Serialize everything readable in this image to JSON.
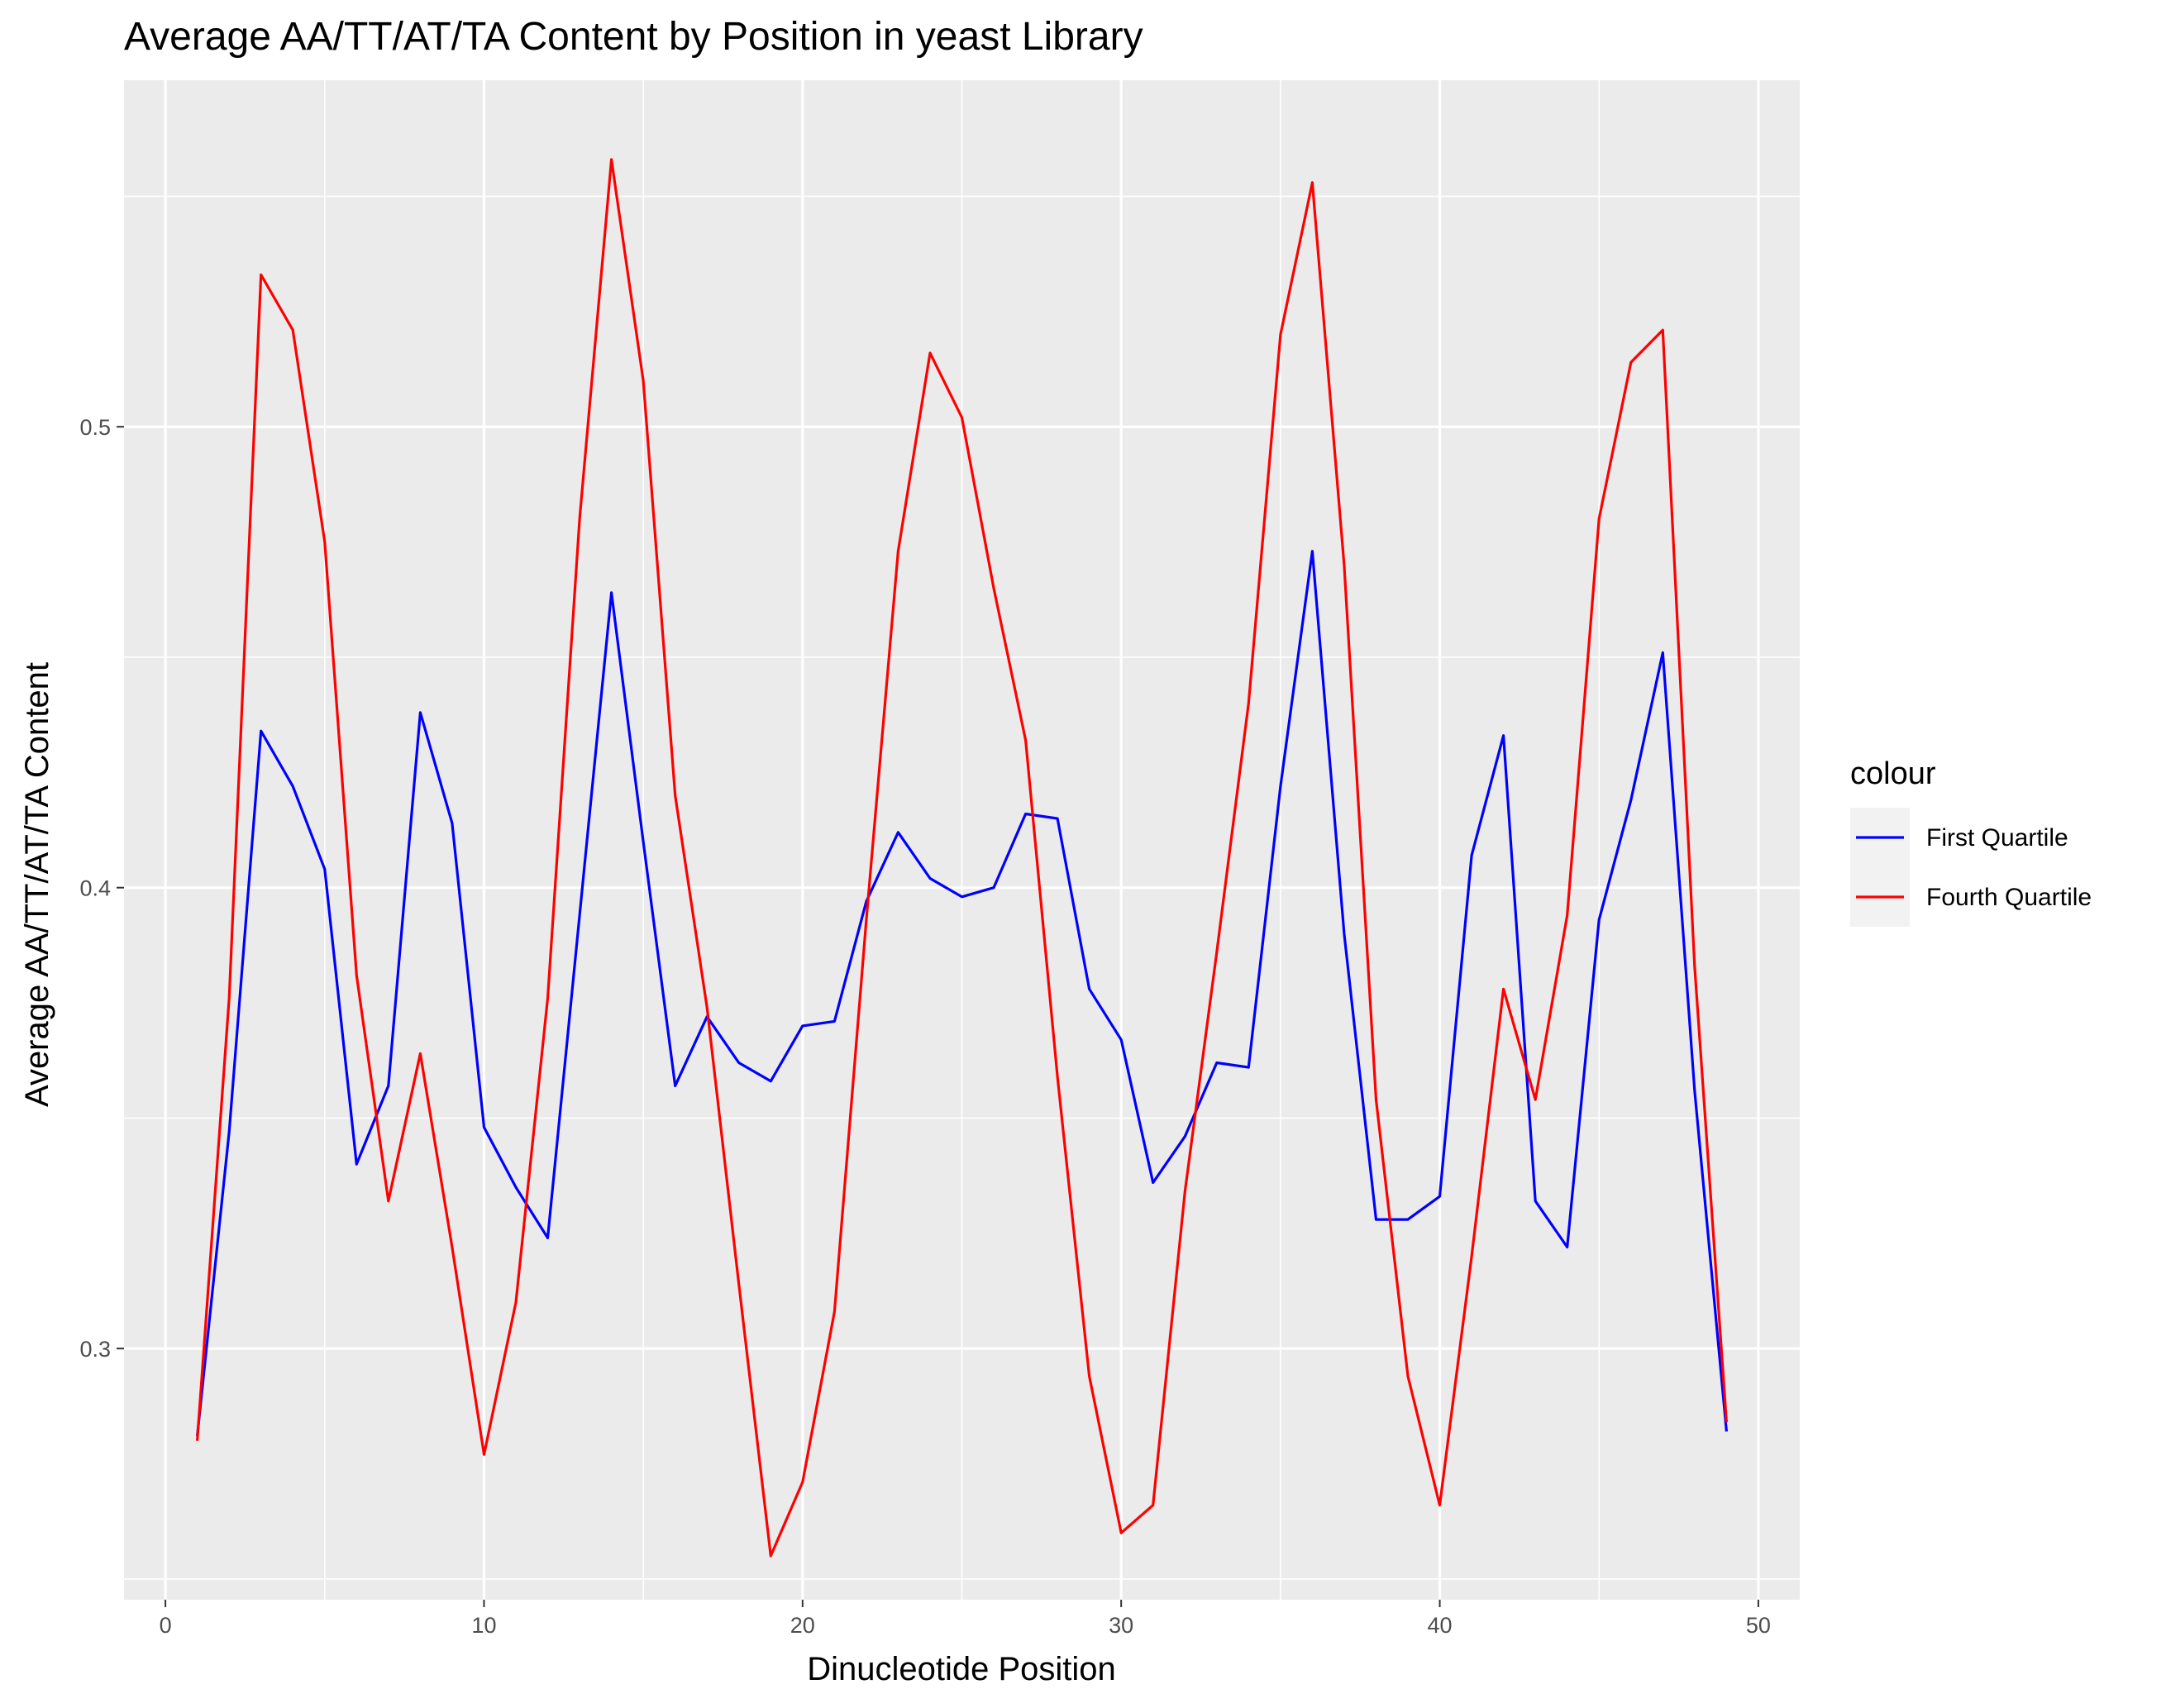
{
  "chart_data": {
    "type": "line",
    "title": "Average AA/TT/AT/TA Content by Position in yeast Library",
    "xlabel": "Dinucleotide Position",
    "ylabel": "Average AA/TT/AT/TA Content",
    "xlim": [
      -1.3,
      51.3
    ],
    "ylim": [
      0.2455,
      0.5752
    ],
    "x_ticks": [
      0,
      10,
      20,
      30,
      40,
      50
    ],
    "x_tick_labels": [
      "0",
      "10",
      "20",
      "30",
      "40",
      "50"
    ],
    "y_ticks": [
      0.3,
      0.4,
      0.5
    ],
    "y_tick_labels": [
      "0.3",
      "0.4",
      "0.5"
    ],
    "grid": true,
    "legend": {
      "title": "colour",
      "position": "right"
    },
    "x": [
      1,
      2,
      3,
      4,
      5,
      6,
      7,
      8,
      9,
      10,
      11,
      12,
      13,
      14,
      15,
      16,
      17,
      18,
      19,
      20,
      21,
      22,
      23,
      24,
      25,
      26,
      27,
      28,
      29,
      30,
      31,
      32,
      33,
      34,
      35,
      36,
      37,
      38,
      39,
      40,
      41,
      42,
      43,
      44,
      45,
      46,
      47,
      48,
      49
    ],
    "series": [
      {
        "name": "First Quartile",
        "color": "#0000ff",
        "values": [
          0.281,
          0.347,
          0.434,
          0.422,
          0.404,
          0.34,
          0.357,
          0.438,
          0.414,
          0.348,
          0.335,
          0.324,
          0.394,
          0.464,
          0.41,
          0.357,
          0.372,
          0.362,
          0.358,
          0.37,
          0.371,
          0.397,
          0.412,
          0.402,
          0.398,
          0.4,
          0.416,
          0.415,
          0.378,
          0.367,
          0.336,
          0.346,
          0.362,
          0.361,
          0.422,
          0.473,
          0.39,
          0.328,
          0.328,
          0.333,
          0.407,
          0.433,
          0.332,
          0.322,
          0.393,
          0.419,
          0.451,
          0.356,
          0.282
        ]
      },
      {
        "name": "Fourth Quartile",
        "color": "#ff0000",
        "values": [
          0.28,
          0.376,
          0.533,
          0.521,
          0.475,
          0.381,
          0.332,
          0.364,
          0.322,
          0.277,
          0.31,
          0.376,
          0.48,
          0.558,
          0.51,
          0.42,
          0.374,
          0.314,
          0.255,
          0.271,
          0.308,
          0.393,
          0.473,
          0.516,
          0.502,
          0.465,
          0.432,
          0.359,
          0.294,
          0.26,
          0.266,
          0.334,
          0.386,
          0.44,
          0.52,
          0.553,
          0.47,
          0.354,
          0.294,
          0.266,
          0.32,
          0.378,
          0.354,
          0.394,
          0.48,
          0.514,
          0.521,
          0.383,
          0.284
        ]
      }
    ]
  }
}
